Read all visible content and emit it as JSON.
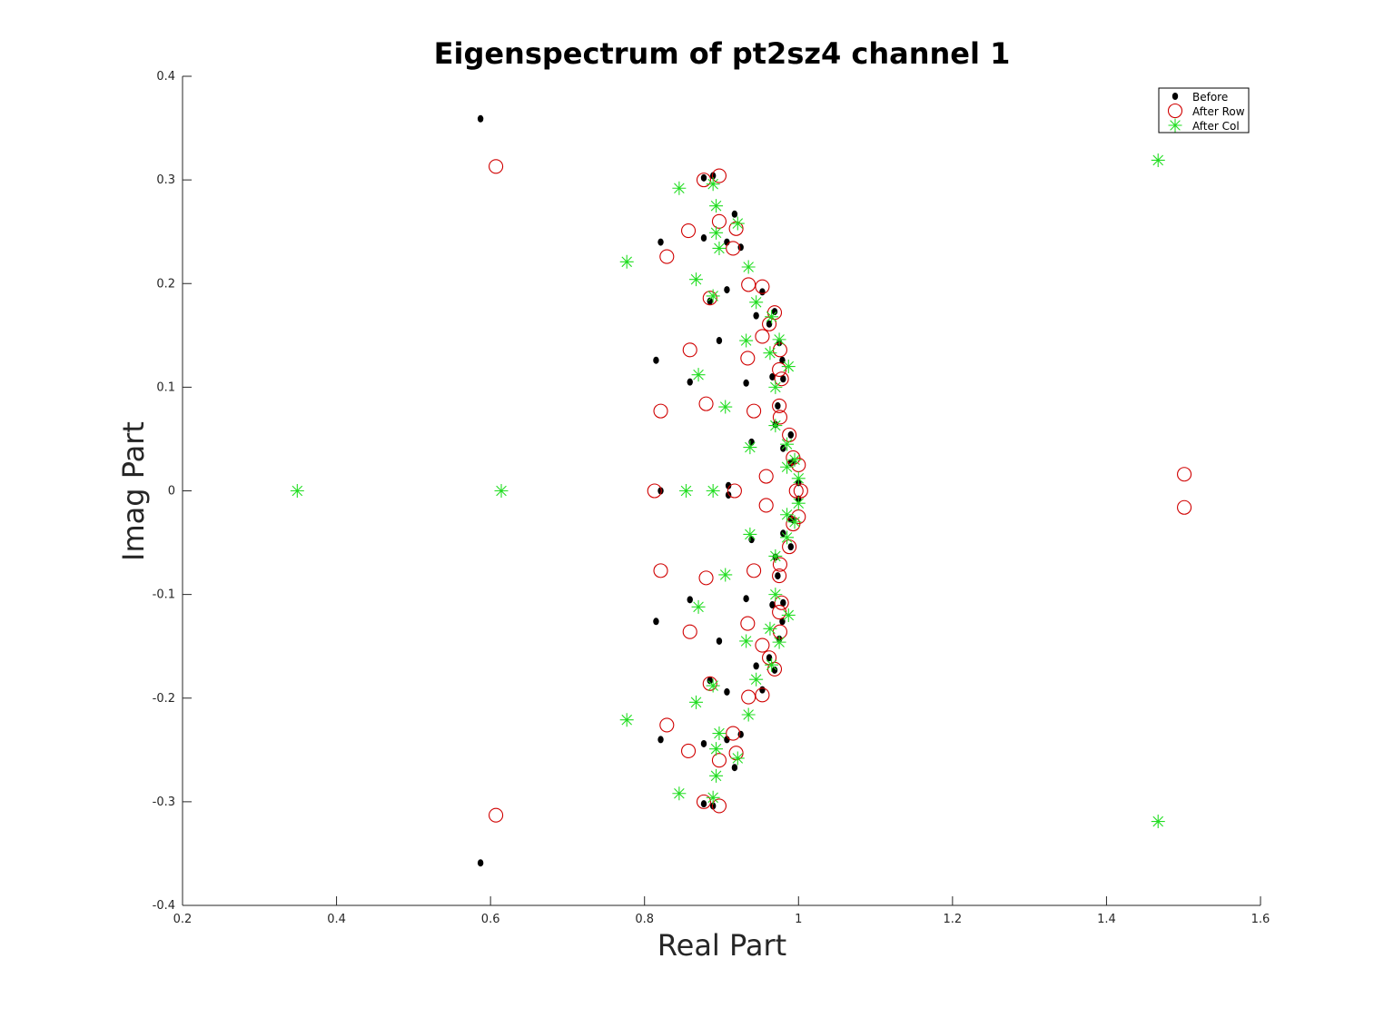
{
  "chart_data": {
    "type": "scatter",
    "title": "Eigenspectrum of pt2sz4 channel 1",
    "xlabel": "Real Part",
    "ylabel": "Imag Part",
    "xlim": [
      0.2,
      1.6
    ],
    "ylim": [
      -0.4,
      0.4
    ],
    "xticks": [
      "0.2",
      "0.4",
      "0.6",
      "0.8",
      "1",
      "1.2",
      "1.4",
      "1.6"
    ],
    "yticks": [
      "-0.4",
      "-0.3",
      "-0.2",
      "-0.1",
      "0",
      "0.1",
      "0.2",
      "0.3",
      "0.4"
    ],
    "grid": false,
    "legend_position": "top-right",
    "series": [
      {
        "name": "Before",
        "marker": "dot",
        "color": "#000000",
        "points": [
          [
            0.587,
            0.359
          ],
          [
            0.587,
            -0.359
          ],
          [
            0.877,
            0.302
          ],
          [
            0.889,
            0.304
          ],
          [
            0.917,
            0.267
          ],
          [
            0.821,
            0.24
          ],
          [
            0.877,
            0.244
          ],
          [
            0.907,
            0.24
          ],
          [
            0.925,
            0.235
          ],
          [
            0.907,
            0.194
          ],
          [
            0.953,
            0.192
          ],
          [
            0.885,
            0.183
          ],
          [
            0.945,
            0.169
          ],
          [
            0.969,
            0.173
          ],
          [
            0.962,
            0.161
          ],
          [
            0.897,
            0.145
          ],
          [
            0.975,
            0.143
          ],
          [
            0.815,
            0.126
          ],
          [
            0.979,
            0.126
          ],
          [
            0.859,
            0.105
          ],
          [
            0.932,
            0.104
          ],
          [
            0.966,
            0.11
          ],
          [
            0.98,
            0.108
          ],
          [
            0.973,
            0.082
          ],
          [
            0.97,
            0.064
          ],
          [
            0.939,
            0.047
          ],
          [
            0.99,
            0.054
          ],
          [
            0.98,
            0.041
          ],
          [
            0.993,
            0.028
          ],
          [
            0.99,
            0.027
          ],
          [
            1.0,
            0.008
          ],
          [
            0.821,
            0.0
          ],
          [
            0.909,
            0.005
          ],
          [
            0.909,
            -0.004
          ],
          [
            1.0,
            -0.008
          ],
          [
            0.993,
            -0.028
          ],
          [
            0.99,
            -0.027
          ],
          [
            0.98,
            -0.041
          ],
          [
            0.939,
            -0.047
          ],
          [
            0.99,
            -0.054
          ],
          [
            0.97,
            -0.064
          ],
          [
            0.973,
            -0.082
          ],
          [
            0.859,
            -0.105
          ],
          [
            0.932,
            -0.104
          ],
          [
            0.966,
            -0.11
          ],
          [
            0.98,
            -0.108
          ],
          [
            0.815,
            -0.126
          ],
          [
            0.979,
            -0.126
          ],
          [
            0.897,
            -0.145
          ],
          [
            0.975,
            -0.143
          ],
          [
            0.962,
            -0.161
          ],
          [
            0.945,
            -0.169
          ],
          [
            0.969,
            -0.173
          ],
          [
            0.885,
            -0.183
          ],
          [
            0.953,
            -0.192
          ],
          [
            0.907,
            -0.194
          ],
          [
            0.925,
            -0.235
          ],
          [
            0.907,
            -0.24
          ],
          [
            0.821,
            -0.24
          ],
          [
            0.877,
            -0.244
          ],
          [
            0.917,
            -0.267
          ],
          [
            0.877,
            -0.302
          ],
          [
            0.889,
            -0.304
          ]
        ]
      },
      {
        "name": "After Row",
        "marker": "circle",
        "color": "#d00000",
        "points": [
          [
            0.607,
            0.313
          ],
          [
            0.607,
            -0.313
          ],
          [
            0.877,
            0.3
          ],
          [
            0.897,
            0.304
          ],
          [
            0.897,
            0.26
          ],
          [
            0.919,
            0.253
          ],
          [
            0.857,
            0.251
          ],
          [
            0.829,
            0.226
          ],
          [
            0.915,
            0.234
          ],
          [
            0.953,
            0.197
          ],
          [
            0.935,
            0.199
          ],
          [
            0.885,
            0.186
          ],
          [
            0.962,
            0.161
          ],
          [
            0.969,
            0.172
          ],
          [
            0.953,
            0.149
          ],
          [
            0.976,
            0.136
          ],
          [
            0.859,
            0.136
          ],
          [
            0.934,
            0.128
          ],
          [
            0.975,
            0.117
          ],
          [
            0.978,
            0.108
          ],
          [
            0.821,
            0.077
          ],
          [
            0.88,
            0.084
          ],
          [
            0.942,
            0.077
          ],
          [
            0.975,
            0.082
          ],
          [
            0.976,
            0.071
          ],
          [
            0.988,
            0.054
          ],
          [
            0.993,
            0.032
          ],
          [
            1.0,
            0.025
          ],
          [
            0.958,
            0.014
          ],
          [
            0.813,
            0.0
          ],
          [
            0.917,
            0.0
          ],
          [
            0.997,
            0.0
          ],
          [
            1.003,
            0.0
          ],
          [
            0.958,
            -0.014
          ],
          [
            1.0,
            -0.025
          ],
          [
            0.993,
            -0.032
          ],
          [
            0.988,
            -0.054
          ],
          [
            0.976,
            -0.071
          ],
          [
            0.975,
            -0.082
          ],
          [
            0.821,
            -0.077
          ],
          [
            0.88,
            -0.084
          ],
          [
            0.942,
            -0.077
          ],
          [
            0.978,
            -0.108
          ],
          [
            0.975,
            -0.117
          ],
          [
            0.934,
            -0.128
          ],
          [
            0.976,
            -0.136
          ],
          [
            0.859,
            -0.136
          ],
          [
            0.953,
            -0.149
          ],
          [
            0.962,
            -0.161
          ],
          [
            0.969,
            -0.172
          ],
          [
            0.885,
            -0.186
          ],
          [
            0.953,
            -0.197
          ],
          [
            0.935,
            -0.199
          ],
          [
            0.829,
            -0.226
          ],
          [
            0.915,
            -0.234
          ],
          [
            0.857,
            -0.251
          ],
          [
            0.919,
            -0.253
          ],
          [
            0.897,
            -0.26
          ],
          [
            0.877,
            -0.3
          ],
          [
            0.897,
            -0.304
          ],
          [
            1.501,
            0.016
          ],
          [
            1.501,
            -0.016
          ]
        ]
      },
      {
        "name": "After Col",
        "marker": "star",
        "color": "#22dd22",
        "points": [
          [
            0.349,
            0.0
          ],
          [
            0.614,
            0.0
          ],
          [
            0.854,
            0.0
          ],
          [
            0.889,
            0.0
          ],
          [
            1.467,
            0.319
          ],
          [
            1.467,
            -0.319
          ],
          [
            0.777,
            0.221
          ],
          [
            0.777,
            -0.221
          ],
          [
            0.845,
            0.292
          ],
          [
            0.889,
            0.296
          ],
          [
            0.893,
            0.275
          ],
          [
            0.921,
            0.258
          ],
          [
            0.893,
            0.249
          ],
          [
            0.897,
            0.234
          ],
          [
            0.935,
            0.216
          ],
          [
            0.867,
            0.204
          ],
          [
            0.889,
            0.188
          ],
          [
            0.945,
            0.182
          ],
          [
            0.965,
            0.168
          ],
          [
            0.932,
            0.145
          ],
          [
            0.975,
            0.146
          ],
          [
            0.963,
            0.133
          ],
          [
            0.987,
            0.12
          ],
          [
            0.87,
            0.112
          ],
          [
            0.97,
            0.1
          ],
          [
            0.905,
            0.081
          ],
          [
            0.97,
            0.063
          ],
          [
            0.937,
            0.042
          ],
          [
            0.985,
            0.045
          ],
          [
            0.995,
            0.03
          ],
          [
            0.985,
            0.023
          ],
          [
            1.0,
            0.012
          ],
          [
            1.0,
            -0.012
          ],
          [
            0.985,
            -0.023
          ],
          [
            0.995,
            -0.03
          ],
          [
            0.985,
            -0.045
          ],
          [
            0.937,
            -0.042
          ],
          [
            0.97,
            -0.063
          ],
          [
            0.905,
            -0.081
          ],
          [
            0.97,
            -0.1
          ],
          [
            0.87,
            -0.112
          ],
          [
            0.987,
            -0.12
          ],
          [
            0.963,
            -0.133
          ],
          [
            0.932,
            -0.145
          ],
          [
            0.975,
            -0.146
          ],
          [
            0.965,
            -0.168
          ],
          [
            0.945,
            -0.182
          ],
          [
            0.889,
            -0.188
          ],
          [
            0.867,
            -0.204
          ],
          [
            0.935,
            -0.216
          ],
          [
            0.897,
            -0.234
          ],
          [
            0.893,
            -0.249
          ],
          [
            0.921,
            -0.258
          ],
          [
            0.893,
            -0.275
          ],
          [
            0.889,
            -0.296
          ],
          [
            0.845,
            -0.292
          ]
        ]
      }
    ]
  }
}
